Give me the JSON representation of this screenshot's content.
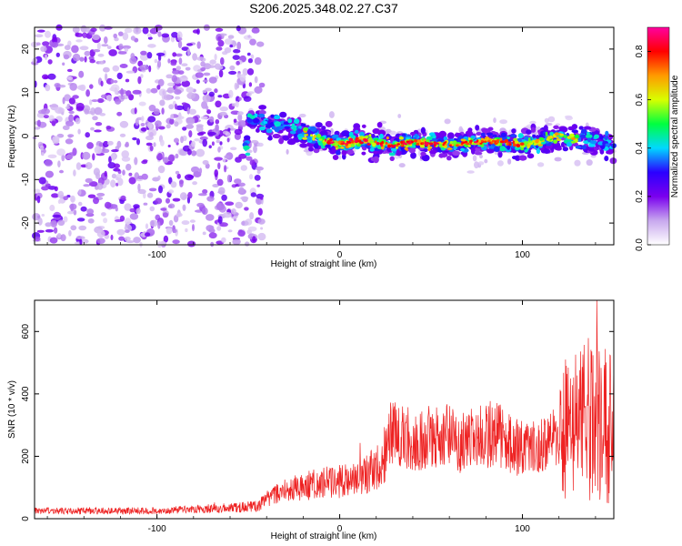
{
  "title": "S206.2025.348.02.27.C37",
  "chart_data": [
    {
      "type": "heatmap",
      "xlabel": "Height of straight line (km)",
      "ylabel": "Frequency (Hz)",
      "xlim": [
        -167,
        150
      ],
      "ylim": [
        -25,
        25
      ],
      "xticks": [
        -100,
        0,
        100
      ],
      "yticks": [
        -20,
        -10,
        0,
        10,
        20
      ],
      "band_center_hz": [
        [
          -50,
          4
        ],
        [
          -30,
          2
        ],
        [
          -15,
          0
        ],
        [
          0,
          -2
        ],
        [
          10,
          -1
        ],
        [
          20,
          -1.5
        ],
        [
          30,
          -2
        ],
        [
          40,
          -1.5
        ],
        [
          60,
          -2
        ],
        [
          80,
          -1
        ],
        [
          100,
          -2
        ],
        [
          120,
          0
        ],
        [
          140,
          -1
        ],
        [
          150,
          -2
        ]
      ],
      "noise_region_km": [
        -167,
        -42
      ],
      "colorbar": {
        "label": "Normalized spectral amplitude",
        "range": [
          0,
          0.9
        ],
        "ticks": [
          0.0,
          0.2,
          0.4,
          0.6,
          0.8
        ],
        "colors": [
          "#ffffff",
          "#c8a8ee",
          "#7a00ee",
          "#2b00ff",
          "#00d8ff",
          "#00ff40",
          "#d8ff00",
          "#ff9a00",
          "#ff0000",
          "#ff00a0"
        ]
      }
    },
    {
      "type": "line",
      "xlabel": "Height of straight line (km)",
      "ylabel": "SNR (10 * v/v)",
      "xlim": [
        -167,
        150
      ],
      "ylim": [
        0,
        700
      ],
      "xticks": [
        -100,
        0,
        100
      ],
      "yticks": [
        0,
        200,
        400,
        600
      ],
      "color": "#ee2222",
      "series": [
        {
          "name": "SNR",
          "x": [
            -167,
            -150,
            -120,
            -100,
            -80,
            -60,
            -45,
            -40,
            -30,
            -20,
            -10,
            0,
            10,
            20,
            25,
            28,
            35,
            45,
            55,
            65,
            75,
            85,
            95,
            105,
            115,
            125,
            135,
            140,
            145,
            150
          ],
          "y": [
            25,
            25,
            25,
            25,
            30,
            35,
            40,
            60,
            90,
            105,
            115,
            120,
            130,
            160,
            210,
            290,
            260,
            250,
            280,
            240,
            260,
            275,
            230,
            220,
            250,
            290,
            310,
            330,
            300,
            300
          ]
        }
      ]
    }
  ]
}
